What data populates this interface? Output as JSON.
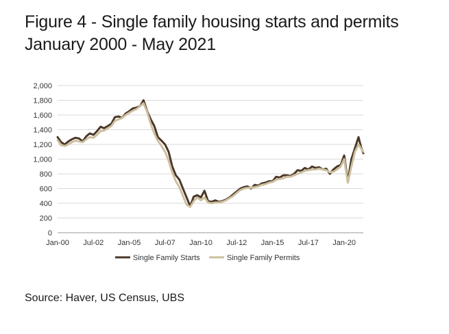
{
  "figure": {
    "title_line1": "Figure 4 - Single family housing starts and permits",
    "title_line2": "January 2000 - May 2021",
    "source": "Source: Haver, US Census, UBS"
  },
  "chart_data": {
    "type": "line",
    "title": "Figure 4 - Single family housing starts and permits",
    "subtitle": "January 2000 - May 2021",
    "xlabel": "",
    "ylabel": "",
    "ylim": [
      0,
      2000
    ],
    "yticks": [
      0,
      200,
      400,
      600,
      800,
      1000,
      1200,
      1400,
      1600,
      1800,
      2000
    ],
    "ytick_labels": [
      "0",
      "200",
      "400",
      "600",
      "800",
      "1,000",
      "1,200",
      "1,400",
      "1,600",
      "1,800",
      "2,000"
    ],
    "xlim": [
      "2000-01",
      "2021-05"
    ],
    "xtick_labels": [
      "Jan-00",
      "Jul-02",
      "Jan-05",
      "Jul-07",
      "Jan-10",
      "Jul-12",
      "Jan-15",
      "Jul-17",
      "Jan-20"
    ],
    "xtick_dates": [
      "2000-01",
      "2002-07",
      "2005-01",
      "2007-07",
      "2010-01",
      "2012-07",
      "2015-01",
      "2017-07",
      "2020-01"
    ],
    "grid": "horizontal",
    "legend": "bottom",
    "colors": {
      "starts": "#4a3728",
      "permits": "#cdbf9e",
      "grid": "#d9d9d9",
      "axis": "#999999"
    },
    "series": [
      {
        "name": "Single Family Starts",
        "x": [
          "2000-01",
          "2000-04",
          "2000-07",
          "2000-10",
          "2001-01",
          "2001-04",
          "2001-07",
          "2001-10",
          "2002-01",
          "2002-04",
          "2002-07",
          "2002-10",
          "2003-01",
          "2003-04",
          "2003-07",
          "2003-10",
          "2004-01",
          "2004-04",
          "2004-07",
          "2004-10",
          "2005-01",
          "2005-04",
          "2005-07",
          "2005-10",
          "2006-01",
          "2006-04",
          "2006-07",
          "2006-10",
          "2007-01",
          "2007-04",
          "2007-07",
          "2007-10",
          "2008-01",
          "2008-04",
          "2008-07",
          "2008-10",
          "2009-01",
          "2009-04",
          "2009-07",
          "2009-10",
          "2010-01",
          "2010-04",
          "2010-07",
          "2010-10",
          "2011-01",
          "2011-04",
          "2011-07",
          "2011-10",
          "2012-01",
          "2012-04",
          "2012-07",
          "2012-10",
          "2013-01",
          "2013-04",
          "2013-07",
          "2013-10",
          "2014-01",
          "2014-04",
          "2014-07",
          "2014-10",
          "2015-01",
          "2015-04",
          "2015-07",
          "2015-10",
          "2016-01",
          "2016-04",
          "2016-07",
          "2016-10",
          "2017-01",
          "2017-04",
          "2017-07",
          "2017-10",
          "2018-01",
          "2018-04",
          "2018-07",
          "2018-10",
          "2019-01",
          "2019-04",
          "2019-07",
          "2019-10",
          "2020-01",
          "2020-04",
          "2020-07",
          "2020-10",
          "2021-01",
          "2021-03",
          "2021-05"
        ],
        "values": [
          1300,
          1230,
          1200,
          1240,
          1270,
          1290,
          1280,
          1240,
          1310,
          1350,
          1330,
          1380,
          1440,
          1420,
          1450,
          1480,
          1570,
          1580,
          1560,
          1620,
          1650,
          1690,
          1700,
          1720,
          1800,
          1650,
          1540,
          1450,
          1300,
          1250,
          1200,
          1100,
          900,
          780,
          720,
          600,
          480,
          360,
          490,
          510,
          480,
          570,
          430,
          420,
          440,
          420,
          430,
          450,
          480,
          520,
          560,
          600,
          620,
          630,
          600,
          650,
          640,
          670,
          680,
          700,
          700,
          760,
          750,
          780,
          780,
          770,
          800,
          850,
          840,
          880,
          860,
          900,
          880,
          890,
          860,
          870,
          800,
          860,
          900,
          920,
          1050,
          700,
          1000,
          1150,
          1300,
          1170,
          1080
        ]
      },
      {
        "name": "Single Family Permits",
        "x": [
          "2000-01",
          "2000-04",
          "2000-07",
          "2000-10",
          "2001-01",
          "2001-04",
          "2001-07",
          "2001-10",
          "2002-01",
          "2002-04",
          "2002-07",
          "2002-10",
          "2003-01",
          "2003-04",
          "2003-07",
          "2003-10",
          "2004-01",
          "2004-04",
          "2004-07",
          "2004-10",
          "2005-01",
          "2005-04",
          "2005-07",
          "2005-10",
          "2006-01",
          "2006-04",
          "2006-07",
          "2006-10",
          "2007-01",
          "2007-04",
          "2007-07",
          "2007-10",
          "2008-01",
          "2008-04",
          "2008-07",
          "2008-10",
          "2009-01",
          "2009-04",
          "2009-07",
          "2009-10",
          "2010-01",
          "2010-04",
          "2010-07",
          "2010-10",
          "2011-01",
          "2011-04",
          "2011-07",
          "2011-10",
          "2012-01",
          "2012-04",
          "2012-07",
          "2012-10",
          "2013-01",
          "2013-04",
          "2013-07",
          "2013-10",
          "2014-01",
          "2014-04",
          "2014-07",
          "2014-10",
          "2015-01",
          "2015-04",
          "2015-07",
          "2015-10",
          "2016-01",
          "2016-04",
          "2016-07",
          "2016-10",
          "2017-01",
          "2017-04",
          "2017-07",
          "2017-10",
          "2018-01",
          "2018-04",
          "2018-07",
          "2018-10",
          "2019-01",
          "2019-04",
          "2019-07",
          "2019-10",
          "2020-01",
          "2020-04",
          "2020-07",
          "2020-10",
          "2021-01",
          "2021-03",
          "2021-05"
        ],
        "values": [
          1260,
          1190,
          1180,
          1200,
          1230,
          1250,
          1240,
          1230,
          1270,
          1300,
          1290,
          1330,
          1380,
          1390,
          1420,
          1450,
          1520,
          1540,
          1560,
          1600,
          1630,
          1660,
          1680,
          1720,
          1760,
          1640,
          1480,
          1350,
          1250,
          1180,
          1100,
          980,
          820,
          700,
          620,
          500,
          380,
          350,
          430,
          480,
          440,
          480,
          410,
          400,
          410,
          410,
          420,
          440,
          470,
          500,
          540,
          580,
          600,
          610,
          610,
          620,
          630,
          650,
          660,
          680,
          690,
          720,
          730,
          740,
          760,
          760,
          780,
          800,
          820,
          840,
          850,
          860,
          860,
          870,
          860,
          850,
          820,
          830,
          860,
          900,
          1000,
          680,
          900,
          1100,
          1200,
          1150,
          1100
        ]
      }
    ]
  }
}
